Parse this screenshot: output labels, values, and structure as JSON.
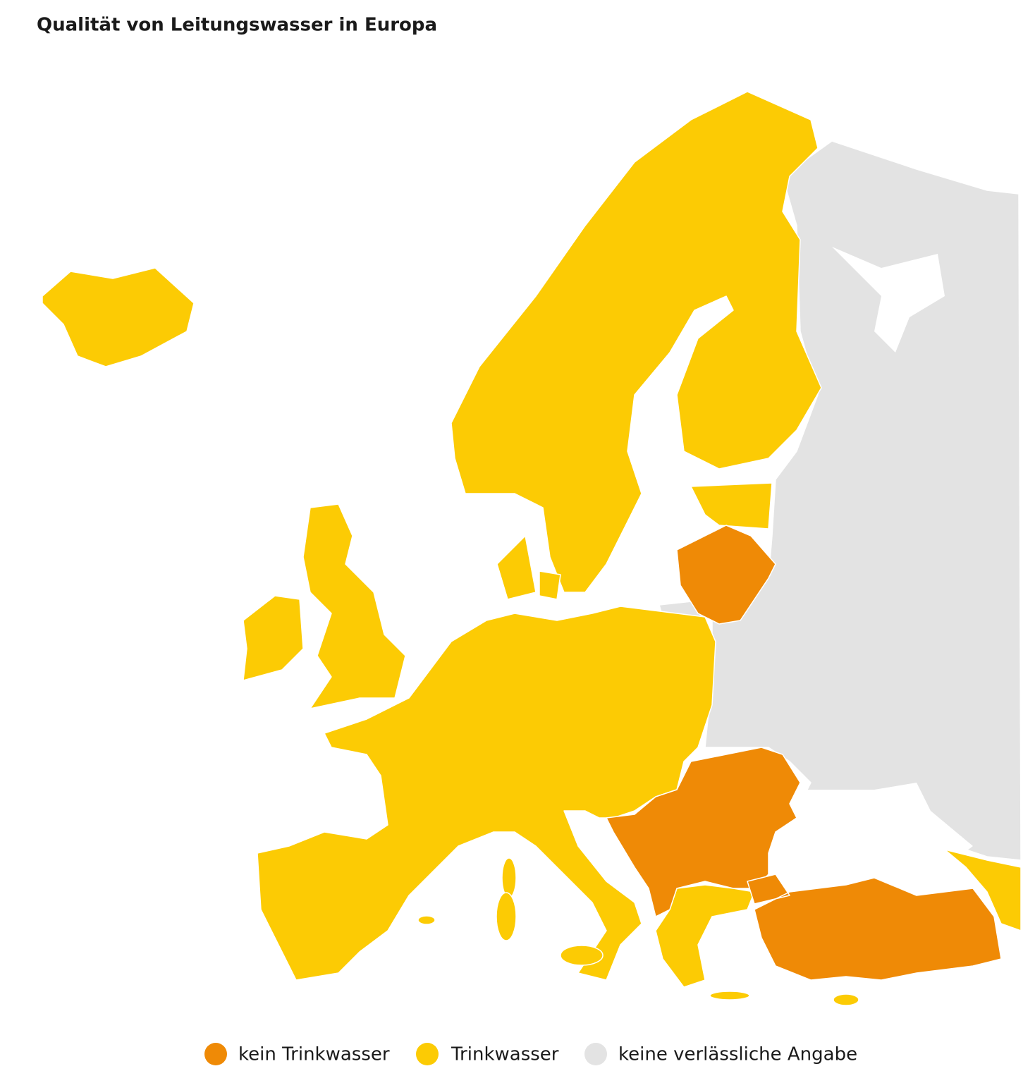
{
  "title": "Qualität von Leitungswasser in Europa",
  "legend": [
    {
      "label": "kein Trinkwasser",
      "color": "#ef8a06"
    },
    {
      "label": "Trinkwasser",
      "color": "#fccb04"
    },
    {
      "label": "keine verlässliche Angabe",
      "color": "#e3e3e3"
    }
  ]
}
